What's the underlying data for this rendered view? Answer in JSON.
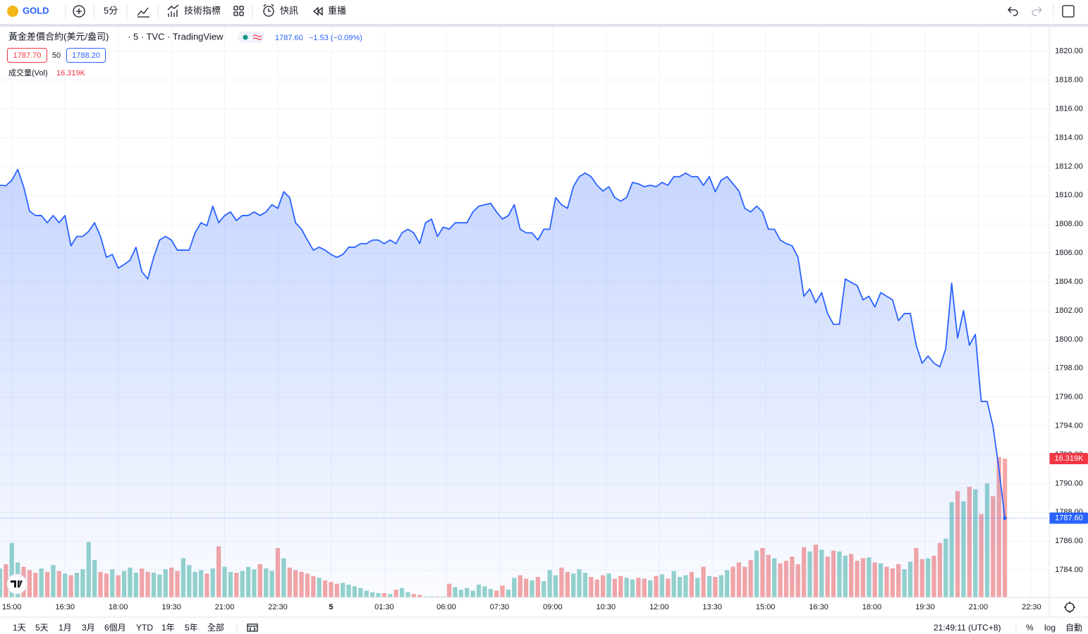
{
  "toolbar": {
    "symbol": "GOLD",
    "interval": "5分",
    "indicators": "技術指標",
    "alerts": "快訊",
    "replay": "重播"
  },
  "legend": {
    "meta": "· 5 · TVC · TradingView",
    "last": "1787.60",
    "change": "−1.53 (−0.09%)",
    "bid": "1787.70",
    "spread": 50,
    "ask": "1788.20"
  },
  "footer": {
    "ranges": [
      "1天",
      "5天",
      "1月",
      "3月",
      "6個月",
      "YTD",
      "1年",
      "5年",
      "全部"
    ],
    "clock": "21:49:11 (UTC+8)",
    "percent": "%",
    "log": "log",
    "auto": "自動"
  },
  "chart_data": {
    "type": "line",
    "x": [
      -4,
      -2,
      0,
      2,
      4,
      6,
      8,
      10,
      12,
      14,
      16,
      18,
      20,
      22,
      24,
      26,
      28,
      30,
      32,
      34,
      36,
      38,
      40,
      42,
      44,
      46,
      48,
      50,
      52,
      54,
      56,
      58,
      60,
      62,
      64,
      66,
      68,
      70,
      72,
      74,
      76,
      78,
      80,
      82,
      84,
      86,
      88,
      90,
      92,
      94,
      96,
      98,
      100,
      102,
      104,
      106,
      108,
      110,
      112,
      114,
      116,
      118,
      120,
      122,
      124,
      126,
      128,
      130,
      132,
      134,
      136,
      138,
      140,
      142,
      144,
      146,
      148,
      150,
      152,
      154,
      156,
      158,
      160,
      162,
      164,
      166,
      168,
      170,
      172,
      174,
      176,
      178,
      180,
      182,
      184,
      186,
      188,
      190,
      192,
      194,
      196,
      198,
      200,
      202,
      204,
      206,
      208,
      210,
      212,
      214,
      216,
      218,
      220,
      222,
      224,
      226,
      228,
      230,
      232,
      234,
      236,
      238,
      240,
      242,
      244,
      246,
      248,
      250,
      252,
      254,
      256,
      258,
      260,
      262,
      264,
      266,
      268,
      270,
      272,
      274,
      276,
      278,
      280,
      282,
      284,
      286,
      288,
      290,
      292,
      294,
      296,
      298,
      300,
      302,
      304,
      306,
      308,
      310,
      312,
      314,
      316,
      318,
      320,
      322,
      324,
      326,
      328,
      330,
      332,
      334,
      336
    ],
    "series": [
      {
        "name": "黃金差價合約(美元/盎司)",
        "color": "#2962ff",
        "values": [
          1810.7,
          1810.67,
          1811.05,
          1811.8,
          1810.6,
          1808.9,
          1808.6,
          1808.6,
          1808.1,
          1808.6,
          1808.1,
          1808.6,
          1806.5,
          1807.15,
          1807.15,
          1807.5,
          1808.1,
          1807.15,
          1805.7,
          1805.9,
          1804.95,
          1805.2,
          1805.5,
          1806.4,
          1804.7,
          1804.2,
          1805.7,
          1806.9,
          1807.15,
          1806.9,
          1806.2,
          1806.2,
          1806.2,
          1807.4,
          1808.1,
          1807.9,
          1809.25,
          1808.1,
          1808.6,
          1808.85,
          1808.25,
          1808.6,
          1808.6,
          1808.85,
          1808.6,
          1808.85,
          1809.35,
          1809.1,
          1810.25,
          1809.85,
          1808.1,
          1807.65,
          1806.9,
          1806.2,
          1806.4,
          1806.2,
          1805.9,
          1805.7,
          1805.9,
          1806.4,
          1806.4,
          1806.65,
          1806.65,
          1806.9,
          1806.9,
          1806.65,
          1806.9,
          1806.65,
          1807.4,
          1807.65,
          1807.4,
          1806.65,
          1808.1,
          1808.35,
          1807.15,
          1807.8,
          1807.65,
          1808.1,
          1808.1,
          1808.1,
          1808.85,
          1809.25,
          1809.35,
          1809.45,
          1808.85,
          1808.35,
          1808.6,
          1809.35,
          1807.65,
          1807.4,
          1807.4,
          1806.9,
          1807.65,
          1807.65,
          1809.85,
          1809.35,
          1809.1,
          1810.6,
          1811.3,
          1811.55,
          1811.3,
          1810.7,
          1810.3,
          1810.6,
          1809.85,
          1809.6,
          1809.85,
          1810.9,
          1810.8,
          1810.6,
          1810.7,
          1810.6,
          1810.9,
          1810.7,
          1811.3,
          1811.3,
          1811.55,
          1811.3,
          1811.3,
          1810.7,
          1811.3,
          1810.25,
          1811.05,
          1811.3,
          1810.8,
          1810.3,
          1809.1,
          1808.85,
          1809.25,
          1808.85,
          1807.65,
          1807.65,
          1806.9,
          1806.65,
          1806.5,
          1805.7,
          1803.0,
          1803.5,
          1802.55,
          1803.25,
          1801.8,
          1801.05,
          1801.05,
          1804.2,
          1803.95,
          1803.75,
          1802.75,
          1803.0,
          1802.25,
          1803.25,
          1803.0,
          1802.75,
          1801.3,
          1801.8,
          1801.8,
          1799.6,
          1798.35,
          1798.85,
          1798.35,
          1798.1,
          1799.35,
          1803.9,
          1800.1,
          1802.0,
          1799.6,
          1800.35,
          1795.7,
          1795.7,
          1793.95,
          1791.0,
          1787.6
        ],
        "last_value_label": "1787.60"
      },
      {
        "name": "成交量(Vol)",
        "type": "bar",
        "axis": "y2",
        "up_color": "#95d3cc",
        "down_color": "#f5a6a5",
        "values": [
          3.4,
          3.9,
          6.4,
          4.1,
          3.6,
          3.2,
          2.9,
          3.4,
          3.0,
          3.8,
          3.1,
          2.8,
          2.6,
          2.9,
          3.3,
          6.5,
          4.4,
          3.0,
          2.8,
          3.3,
          2.6,
          3.1,
          3.5,
          2.9,
          3.4,
          3.0,
          2.9,
          2.7,
          3.3,
          3.5,
          3.1,
          4.6,
          3.8,
          3.0,
          3.2,
          2.8,
          3.4,
          6.0,
          3.6,
          3.0,
          2.9,
          3.1,
          3.6,
          3.3,
          3.9,
          3.4,
          3.1,
          5.8,
          4.6,
          3.5,
          3.2,
          3.0,
          2.8,
          2.5,
          2.3,
          2.0,
          1.8,
          1.6,
          1.7,
          1.5,
          1.3,
          1.1,
          0.8,
          0.6,
          0.5,
          0.5,
          0.4,
          0.9,
          1.1,
          0.6,
          0.4,
          0.3,
          0.1,
          0.1,
          0.1,
          0.1,
          1.6,
          1.2,
          0.9,
          1.1,
          0.8,
          1.5,
          1.3,
          1.0,
          0.8,
          1.4,
          0.9,
          2.3,
          2.6,
          2.2,
          2.0,
          2.4,
          1.9,
          3.2,
          2.6,
          3.5,
          3.0,
          2.8,
          3.3,
          2.9,
          2.4,
          2.1,
          2.6,
          2.8,
          2.2,
          2.5,
          2.3,
          2.1,
          2.3,
          2.2,
          2.0,
          2.5,
          2.7,
          2.2,
          3.1,
          2.4,
          2.6,
          3.0,
          2.3,
          3.6,
          2.5,
          2.4,
          2.6,
          3.2,
          3.6,
          4.1,
          3.6,
          4.4,
          5.5,
          5.8,
          5.0,
          4.6,
          4.0,
          4.3,
          4.8,
          3.9,
          5.9,
          5.4,
          6.2,
          5.6,
          4.8,
          5.5,
          5.4,
          4.9,
          5.1,
          4.3,
          4.6,
          4.7,
          4.1,
          4.0,
          3.6,
          3.4,
          3.9,
          3.3,
          4.2,
          5.8,
          4.5,
          4.6,
          4.9,
          6.4,
          6.9,
          11.2,
          12.5,
          11.3,
          13.0,
          12.7,
          9.8,
          13.4,
          11.9,
          16.5,
          16.319
        ],
        "last_value_label": "16.319K"
      }
    ],
    "xlim": [
      -4,
      351
    ],
    "xticks": [
      {
        "value": 0,
        "label": "15:00"
      },
      {
        "value": 18,
        "label": "16:30"
      },
      {
        "value": 36,
        "label": "18:00"
      },
      {
        "value": 54,
        "label": "19:30"
      },
      {
        "value": 72,
        "label": "21:00"
      },
      {
        "value": 90,
        "label": "22:30"
      },
      {
        "value": 108,
        "label": "5"
      },
      {
        "value": 126,
        "label": "01:30"
      },
      {
        "value": 147,
        "label": "06:00"
      },
      {
        "value": 165,
        "label": "07:30"
      },
      {
        "value": 183,
        "label": "09:00"
      },
      {
        "value": 201,
        "label": "10:30"
      },
      {
        "value": 219,
        "label": "12:00"
      },
      {
        "value": 237,
        "label": "13:30"
      },
      {
        "value": 255,
        "label": "15:00"
      },
      {
        "value": 273,
        "label": "16:30"
      },
      {
        "value": 291,
        "label": "18:00"
      },
      {
        "value": 309,
        "label": "19:30"
      },
      {
        "value": 327,
        "label": "21:00"
      },
      {
        "value": 345,
        "label": "22:30"
      }
    ],
    "ylim": [
      1782.1,
      1821.7
    ],
    "yticks": [
      {
        "value": 1784,
        "label": "1784.00"
      },
      {
        "value": 1786,
        "label": "1786.00"
      },
      {
        "value": 1788,
        "label": "1788.00"
      },
      {
        "value": 1790,
        "label": "1790.00"
      },
      {
        "value": 1792,
        "label": "1792.00"
      },
      {
        "value": 1794,
        "label": "1794.00"
      },
      {
        "value": 1796,
        "label": "1796.00"
      },
      {
        "value": 1798,
        "label": "1798.00"
      },
      {
        "value": 1800,
        "label": "1800.00"
      },
      {
        "value": 1802,
        "label": "1802.00"
      },
      {
        "value": 1804,
        "label": "1804.00"
      },
      {
        "value": 1806,
        "label": "1806.00"
      },
      {
        "value": 1808,
        "label": "1808.00"
      },
      {
        "value": 1810,
        "label": "1810.00"
      },
      {
        "value": 1812,
        "label": "1812.00"
      },
      {
        "value": 1814,
        "label": "1814.00"
      },
      {
        "value": 1816,
        "label": "1816.00"
      },
      {
        "value": 1818,
        "label": "1818.00"
      },
      {
        "value": 1820,
        "label": "1820.00"
      }
    ],
    "y2lim": [
      0,
      67.1
    ],
    "grid": true
  }
}
